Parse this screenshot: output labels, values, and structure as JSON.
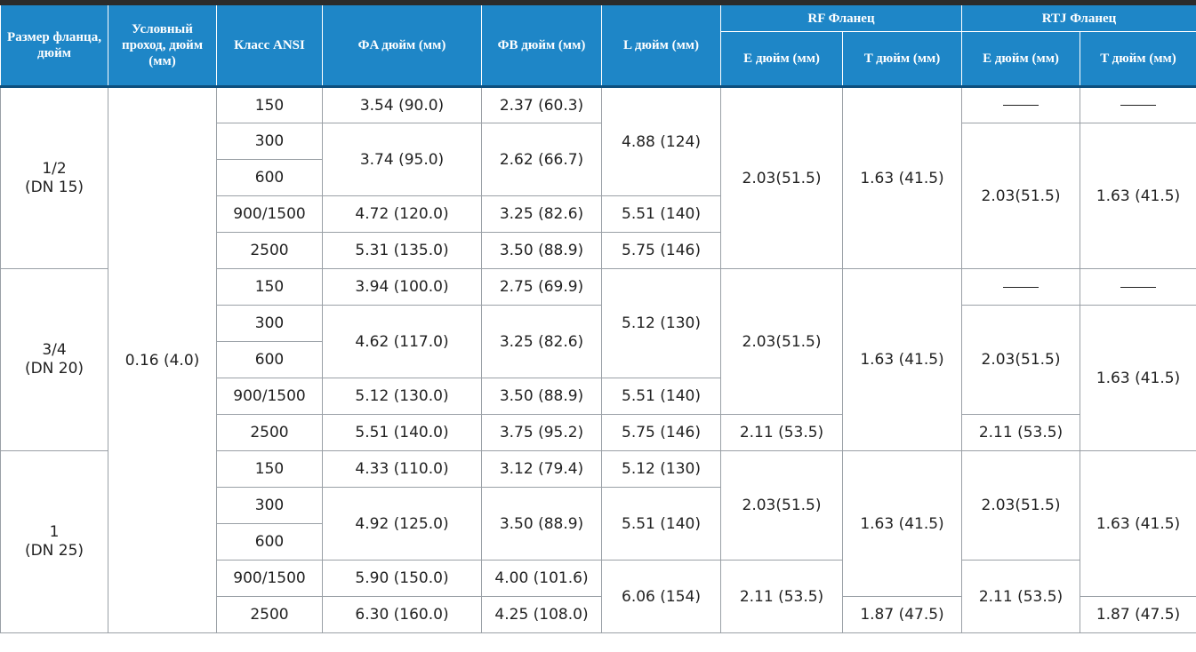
{
  "header": {
    "size_col": "Размер фланца, дюйм",
    "bore_col": "Условный проход, дюйм (мм)",
    "class_col": "Класс ANSI",
    "fa_col": "ФA дюйм (мм)",
    "fb_col": "ФB дюйм (мм)",
    "l_col": "L дюйм (мм)",
    "rf_group": "RF Фланец",
    "rtj_group": "RTJ Фланец",
    "e_col": "E дюйм (мм)",
    "t_col": "T дюйм (мм)"
  },
  "bore_value": "0.16 (4.0)",
  "groups": [
    {
      "size_line1": "1/2",
      "size_line2": "(DN 15)",
      "classes": [
        "150",
        "300",
        "600",
        "900/1500",
        "2500"
      ],
      "fa": [
        "3.54 (90.0)",
        "3.74 (95.0)",
        "4.72 (120.0)",
        "5.31 (135.0)"
      ],
      "fb": [
        "2.37 (60.3)",
        "2.62 (66.7)",
        "3.25 (82.6)",
        "3.50 (88.9)"
      ],
      "l": [
        "4.88 (124)",
        "5.51 (140)",
        "5.75 (146)"
      ],
      "rf_e": [
        "2.03(51.5)"
      ],
      "rf_t": [
        "1.63 (41.5)"
      ],
      "rtj_e": [
        "",
        "2.03(51.5)"
      ],
      "rtj_t": [
        "",
        "1.63 (41.5)"
      ]
    },
    {
      "size_line1": "3/4",
      "size_line2": "(DN 20)",
      "classes": [
        "150",
        "300",
        "600",
        "900/1500",
        "2500"
      ],
      "fa": [
        "3.94 (100.0)",
        "4.62 (117.0)",
        "5.12 (130.0)",
        "5.51 (140.0)"
      ],
      "fb": [
        "2.75 (69.9)",
        "3.25 (82.6)",
        "3.50 (88.9)",
        "3.75 (95.2)"
      ],
      "l": [
        "5.12 (130)",
        "5.51 (140)",
        "5.75 (146)"
      ],
      "rf_e": [
        "2.03(51.5)",
        "2.11 (53.5)"
      ],
      "rf_t": [
        "1.63 (41.5)"
      ],
      "rtj_e": [
        "",
        "2.03(51.5)",
        "2.11 (53.5)"
      ],
      "rtj_t": [
        "",
        "1.63 (41.5)"
      ]
    },
    {
      "size_line1": "1",
      "size_line2": "(DN 25)",
      "classes": [
        "150",
        "300",
        "600",
        "900/1500",
        "2500"
      ],
      "fa": [
        "4.33 (110.0)",
        "4.92 (125.0)",
        "5.90 (150.0)",
        "6.30 (160.0)"
      ],
      "fb": [
        "3.12 (79.4)",
        "3.50 (88.9)",
        "4.00 (101.6)",
        "4.25 (108.0)"
      ],
      "l": [
        "5.12 (130)",
        "5.51 (140)",
        "6.06 (154)"
      ],
      "rf_e": [
        "2.03(51.5)",
        "2.11 (53.5)"
      ],
      "rf_t": [
        "1.63 (41.5)",
        "1.87 (47.5)"
      ],
      "rtj_e": [
        "2.03(51.5)",
        "2.11 (53.5)"
      ],
      "rtj_t": [
        "1.63 (41.5)",
        "1.87 (47.5)"
      ]
    }
  ]
}
